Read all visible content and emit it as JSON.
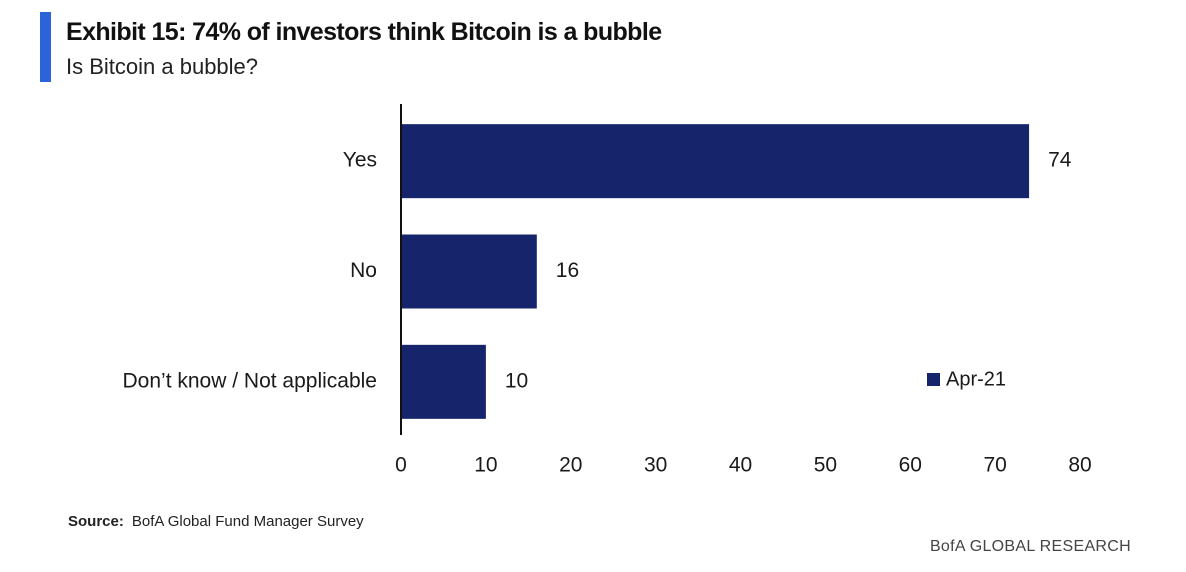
{
  "title": "Exhibit 15: 74% of investors think Bitcoin is a bubble",
  "subtitle": "Is Bitcoin a bubble?",
  "source_label": "Source:",
  "source_text": "BofA Global Fund Manager Survey",
  "brand": "BofA GLOBAL RESEARCH",
  "colors": {
    "bar": "#15246b",
    "accent": "#2b63d9",
    "axis": "#111111"
  },
  "chart_data": {
    "type": "bar",
    "orientation": "horizontal",
    "categories": [
      "Yes",
      "No",
      "Don’t know / Not applicable"
    ],
    "series": [
      {
        "name": "Apr-21",
        "values": [
          74,
          16,
          10
        ]
      }
    ],
    "xlim": [
      0,
      80
    ],
    "xticks": [
      0,
      10,
      20,
      30,
      40,
      50,
      60,
      70,
      80
    ],
    "grid": false,
    "legend_position": "bottom-right"
  }
}
